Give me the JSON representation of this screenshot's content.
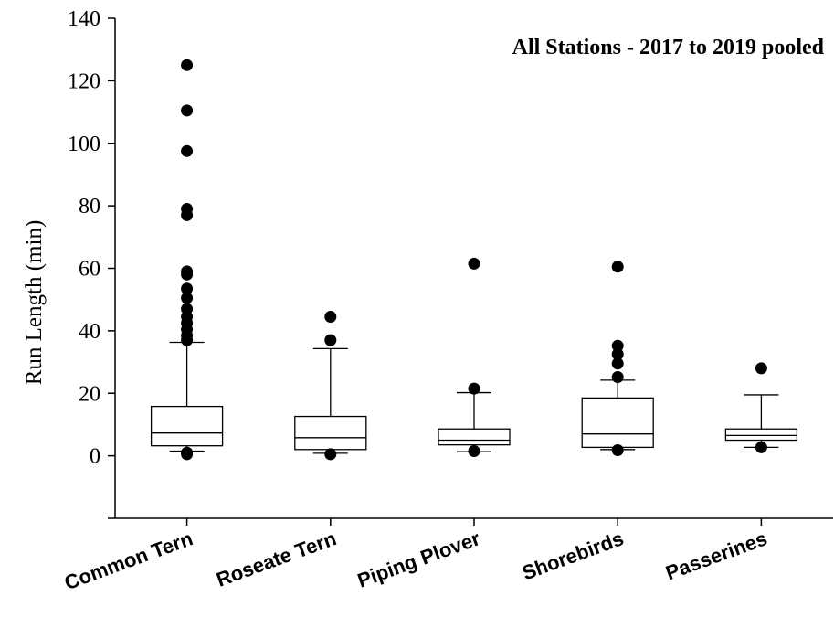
{
  "chart_data": {
    "type": "box",
    "title": "All Stations - 2017 to 2019 pooled",
    "xlabel": "",
    "ylabel": "Run Length (min)",
    "ylim": [
      -20,
      140
    ],
    "yticks": [
      0,
      20,
      40,
      60,
      80,
      100,
      120,
      140
    ],
    "grid": false,
    "categories": [
      "Common Tern",
      "Roseate Tern",
      "Piping Plover",
      "Shorebirds",
      "Passerines"
    ],
    "boxes": [
      {
        "category": "Common Tern",
        "whisker_low": 1.5,
        "q1": 3.2,
        "median": 7.3,
        "q3": 15.8,
        "whisker_high": 36.3,
        "outliers": [
          0.5,
          1.0,
          37,
          38.5,
          40.5,
          42.5,
          44.5,
          47,
          50.5,
          53.5,
          58,
          59,
          77,
          79,
          97.5,
          110.5,
          125
        ]
      },
      {
        "category": "Roseate Tern",
        "whisker_low": 0.8,
        "q1": 2.0,
        "median": 5.8,
        "q3": 12.6,
        "whisker_high": 34.3,
        "outliers": [
          0.5,
          37,
          44.5
        ]
      },
      {
        "category": "Piping Plover",
        "whisker_low": 1.3,
        "q1": 3.5,
        "median": 5.0,
        "q3": 8.6,
        "whisker_high": 20.2,
        "outliers": [
          1.5,
          21.5,
          61.5
        ]
      },
      {
        "category": "Shorebirds",
        "whisker_low": 2.0,
        "q1": 2.7,
        "median": 7.0,
        "q3": 18.5,
        "whisker_high": 24.2,
        "outliers": [
          1.8,
          25.2,
          29.5,
          32.5,
          35.2,
          60.5
        ]
      },
      {
        "category": "Passerines",
        "whisker_low": 2.7,
        "q1": 5.0,
        "median": 6.5,
        "q3": 8.6,
        "whisker_high": 19.5,
        "outliers": [
          2.7,
          28
        ]
      }
    ]
  }
}
